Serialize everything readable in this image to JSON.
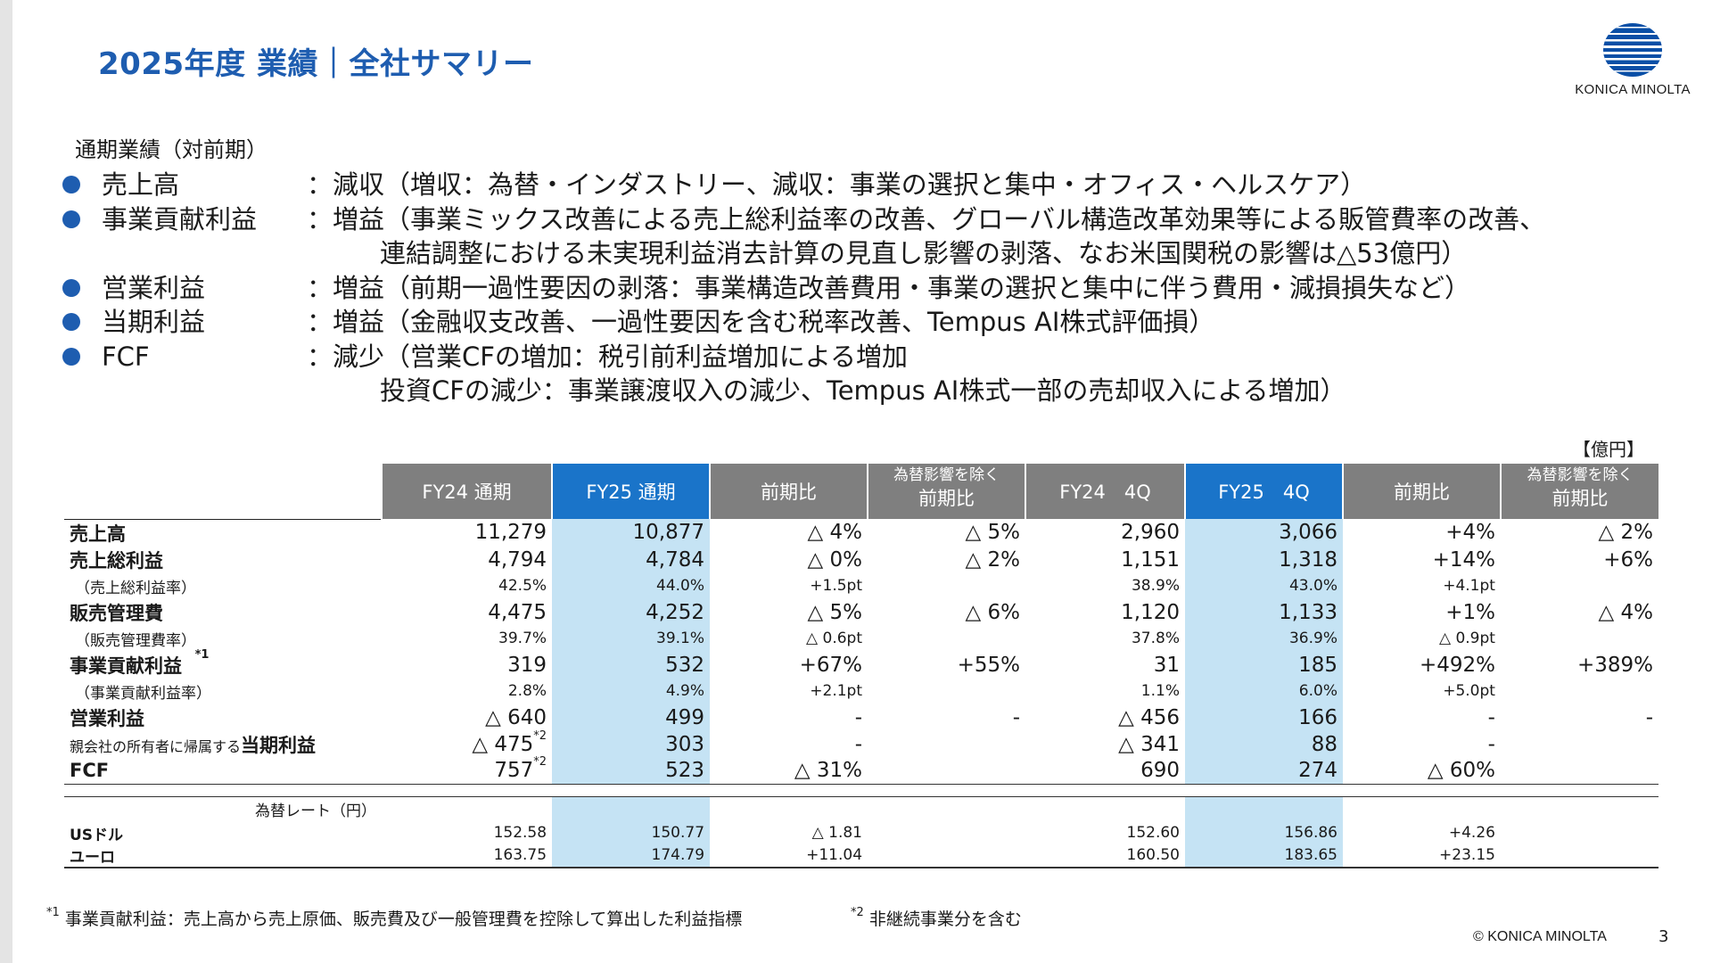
{
  "title": "2025年度 業績｜全社サマリー",
  "logo": {
    "text": "KONICA MINOLTA",
    "icon": "konica-minolta-globe-logo"
  },
  "subheading": "通期業績（対前期）",
  "bullets": [
    {
      "label": "売上高",
      "detail": "：減収（増収：為替・インダストリー、減収：事業の選択と集中・オフィス・ヘルスケア）",
      "continuation": []
    },
    {
      "label": "事業貢献利益",
      "detail": "：増益（事業ミックス改善による売上総利益率の改善、グローバル構造改革効果等による販管費率の改善、",
      "continuation": [
        "連結調整における未実現利益消去計算の見直し影響の剥落、なお米国関税の影響は△53億円）"
      ]
    },
    {
      "label": "営業利益",
      "detail": "：増益（前期一過性要因の剥落：事業構造改善費用・事業の選択と集中に伴う費用・減損損失など）",
      "continuation": []
    },
    {
      "label": "当期利益",
      "detail": "：増益（金融収支改善、一過性要因を含む税率改善、Tempus AI株式評価損）",
      "continuation": []
    },
    {
      "label": "FCF",
      "detail": "：減少（営業CFの増加：税引前利益増加による増加",
      "continuation": [
        "投資CFの減少：事業譲渡収入の減少、Tempus AI株式一部の売却収入による増加）"
      ]
    }
  ],
  "unit": "【億円】",
  "table": {
    "headers": {
      "fy24_full": "FY24 通期",
      "fy25_full": "FY25 通期",
      "yoy1": "前期比",
      "fxadj1_top": "為替影響を除く",
      "fxadj1_bottom": "前期比",
      "fy24_q4": "FY24　4Q",
      "fy25_q4": "FY25　4Q",
      "yoy2": "前期比",
      "fxadj2_top": "為替影響を除く",
      "fxadj2_bottom": "前期比"
    },
    "rows": {
      "sales": {
        "label": "売上高",
        "fy24": "11,279",
        "fy25": "10,877",
        "yoy": "△ 4%",
        "fxadj": "△ 5%",
        "q4_24": "2,960",
        "q4_25": "3,066",
        "q4_yoy": "+4%",
        "q4_fxadj": "△ 2%"
      },
      "gross_profit": {
        "label": "売上総利益",
        "fy24": "4,794",
        "fy25": "4,784",
        "yoy": "△ 0%",
        "fxadj": "△ 2%",
        "q4_24": "1,151",
        "q4_25": "1,318",
        "q4_yoy": "+14%",
        "q4_fxadj": "+6%"
      },
      "gross_margin": {
        "label": "（売上総利益率）",
        "fy24": "42.5%",
        "fy25": "44.0%",
        "yoy": "+1.5pt",
        "fxadj": "",
        "q4_24": "38.9%",
        "q4_25": "43.0%",
        "q4_yoy": "+4.1pt",
        "q4_fxadj": ""
      },
      "sga": {
        "label": "販売管理費",
        "fy24": "4,475",
        "fy25": "4,252",
        "yoy": "△ 5%",
        "fxadj": "△ 6%",
        "q4_24": "1,120",
        "q4_25": "1,133",
        "q4_yoy": "+1%",
        "q4_fxadj": "△ 4%"
      },
      "sga_ratio": {
        "label": "（販売管理費率）",
        "fy24": "39.7%",
        "fy25": "39.1%",
        "yoy": "△ 0.6pt",
        "fxadj": "",
        "q4_24": "37.8%",
        "q4_25": "36.9%",
        "q4_yoy": "△ 0.9pt",
        "q4_fxadj": ""
      },
      "contribution": {
        "label": "事業貢献利益",
        "mark": "*1",
        "fy24": "319",
        "fy25": "532",
        "yoy": "+67%",
        "fxadj": "+55%",
        "q4_24": "31",
        "q4_25": "185",
        "q4_yoy": "+492%",
        "q4_fxadj": "+389%"
      },
      "contribution_margin": {
        "label": "（事業貢献利益率）",
        "fy24": "2.8%",
        "fy25": "4.9%",
        "yoy": "+2.1pt",
        "fxadj": "",
        "q4_24": "1.1%",
        "q4_25": "6.0%",
        "q4_yoy": "+5.0pt",
        "q4_fxadj": ""
      },
      "operating": {
        "label": "営業利益",
        "fy24": "△ 640",
        "fy25": "499",
        "yoy": "-",
        "fxadj": "-",
        "q4_24": "△ 456",
        "q4_25": "166",
        "q4_yoy": "-",
        "q4_fxadj": "-"
      },
      "net": {
        "label_prefix": "親会社の所有者に帰属する",
        "label": "当期利益",
        "fy24": "△ 475",
        "fy24_mark": "*2",
        "fy25": "303",
        "yoy": "-",
        "fxadj": "",
        "q4_24": "△ 341",
        "q4_25": "88",
        "q4_yoy": "-",
        "q4_fxadj": ""
      },
      "fcf": {
        "label": "FCF",
        "fy24": "757",
        "fy24_mark": "*2",
        "fy25": "523",
        "yoy": "△ 31%",
        "fxadj": "",
        "q4_24": "690",
        "q4_25": "274",
        "q4_yoy": "△ 60%",
        "q4_fxadj": ""
      }
    },
    "fx": {
      "heading": "為替レート（円）",
      "usd": {
        "label": "USドル",
        "fy24": "152.58",
        "fy25": "150.77",
        "yoy": "△ 1.81",
        "q4_24": "152.60",
        "q4_25": "156.86",
        "q4_yoy": "+4.26"
      },
      "eur": {
        "label": "ユーロ",
        "fy24": "163.75",
        "fy25": "174.79",
        "yoy": "+11.04",
        "q4_24": "160.50",
        "q4_25": "183.65",
        "q4_yoy": "+23.15"
      }
    }
  },
  "footnotes": {
    "note1_mark": "*1",
    "note1": "事業貢献利益：売上高から売上原価、販売費及び一般管理費を控除して算出した利益指標",
    "note2_mark": "*2",
    "note2": "非継続事業分を含む"
  },
  "copyright": "© KONICA MINOLTA",
  "page_number": "3",
  "colors": {
    "title": "#1e5db0",
    "header_gray": "#7f7f7f",
    "header_blue": "#1a74c9",
    "highlight": "#c5e3f4"
  }
}
